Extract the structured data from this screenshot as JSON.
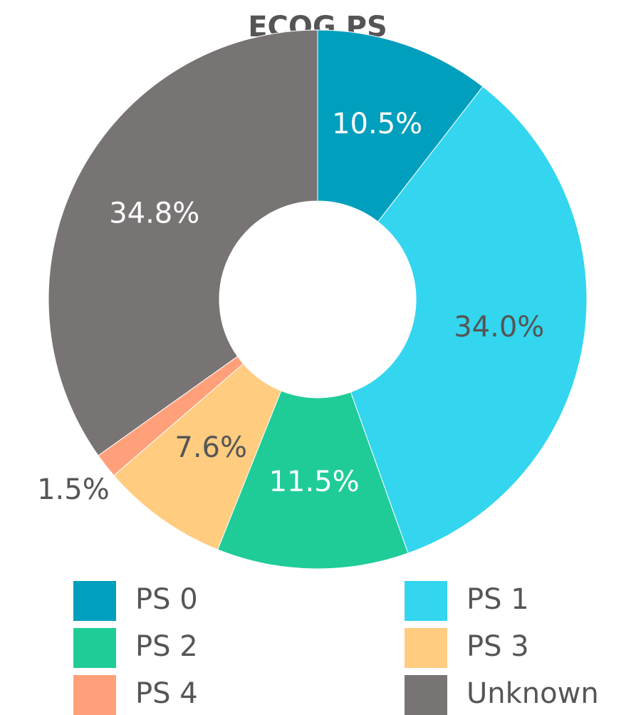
{
  "chart_data": {
    "type": "pie",
    "title": "ECOG PS",
    "categories": [
      "PS 0",
      "PS 1",
      "PS 2",
      "PS 3",
      "PS 4",
      "Unknown"
    ],
    "values": [
      10.5,
      34.0,
      11.5,
      7.6,
      1.5,
      34.8
    ],
    "value_labels": [
      "10.5%",
      "34.0%",
      "11.5%",
      "7.6%",
      "1.5%",
      "34.8%"
    ],
    "colors": [
      "#009fbd",
      "#33d5ef",
      "#1fcc97",
      "#ffcc80",
      "#ffa07a",
      "#787474"
    ],
    "donut": true
  }
}
